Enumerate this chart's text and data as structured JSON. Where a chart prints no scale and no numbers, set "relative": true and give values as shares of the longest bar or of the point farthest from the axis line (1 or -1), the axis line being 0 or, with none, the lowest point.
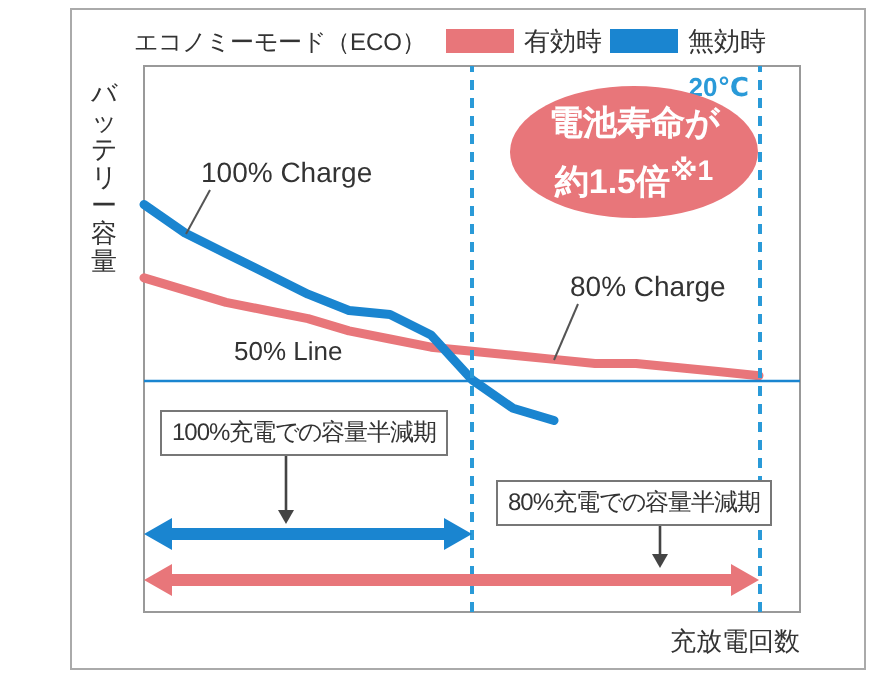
{
  "chart_data": {
    "type": "line",
    "relative": true,
    "legend_title": "エコノミーモード（ECO）",
    "legend": "top",
    "ylabel": "バッテリー容量",
    "xlabel": "充放電回数",
    "categories": [
      null,
      null,
      null,
      null,
      null,
      null,
      null,
      null,
      null,
      null,
      null,
      null,
      null,
      null,
      null,
      null,
      null
    ],
    "series": [
      {
        "name": "有効時",
        "color": "#e8767a",
        "values": [
          0.82,
          0.79,
          0.76,
          0.74,
          0.72,
          0.69,
          0.67,
          0.65,
          0.64,
          0.63,
          0.62,
          0.61,
          0.61,
          0.6,
          0.59,
          0.58,
          null
        ]
      },
      {
        "name": "無効時",
        "color": "#1a85d0",
        "values": [
          1,
          0.93,
          0.88,
          0.83,
          0.78,
          0.74,
          0.73,
          0.68,
          0.57,
          0.5,
          0.47,
          null,
          null,
          null,
          null,
          null,
          null
        ]
      }
    ],
    "ref_lines": [
      {
        "axis": "y",
        "value": 0.57,
        "label": "50% Line",
        "color": "#1a85d0",
        "line_style": "solid"
      }
    ],
    "annotations": [
      "100% Charge",
      "80% Charge",
      "20℃",
      "電池寿命が約1.5倍$^{※1}$",
      "100%充電での容量半減期",
      "80%充電での容量半減期"
    ]
  }
}
